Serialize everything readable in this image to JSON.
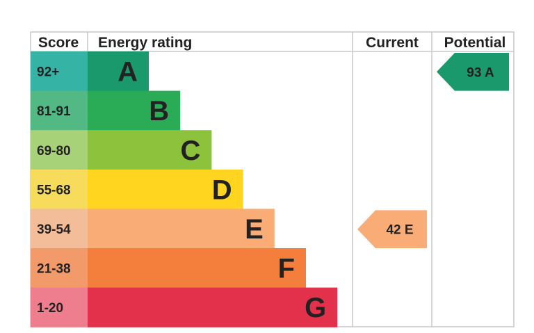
{
  "chart_data": {
    "type": "bar",
    "headers": {
      "score": "Score",
      "energy_rating": "Energy rating",
      "current": "Current",
      "potential": "Potential"
    },
    "bands": [
      {
        "score": "92+",
        "letter": "A",
        "color": "#1a9a6c",
        "score_bg": "#35b3a5"
      },
      {
        "score": "81-91",
        "letter": "B",
        "color": "#2aab56",
        "score_bg": "#52b984"
      },
      {
        "score": "69-80",
        "letter": "C",
        "color": "#8dc23c",
        "score_bg": "#a8d278"
      },
      {
        "score": "55-68",
        "letter": "D",
        "color": "#ffd520",
        "score_bg": "#f6dc5a"
      },
      {
        "score": "39-54",
        "letter": "E",
        "color": "#f9ac76",
        "score_bg": "#f4bd9a"
      },
      {
        "score": "21-38",
        "letter": "F",
        "color": "#f47f3c",
        "score_bg": "#f39a6a"
      },
      {
        "score": "1-20",
        "letter": "G",
        "color": "#e3304b",
        "score_bg": "#ee7d8e"
      }
    ],
    "current": {
      "value": 42,
      "letter": "E",
      "color": "#f9ac76"
    },
    "potential": {
      "value": 93,
      "letter": "A",
      "color": "#1a9a6c"
    }
  }
}
